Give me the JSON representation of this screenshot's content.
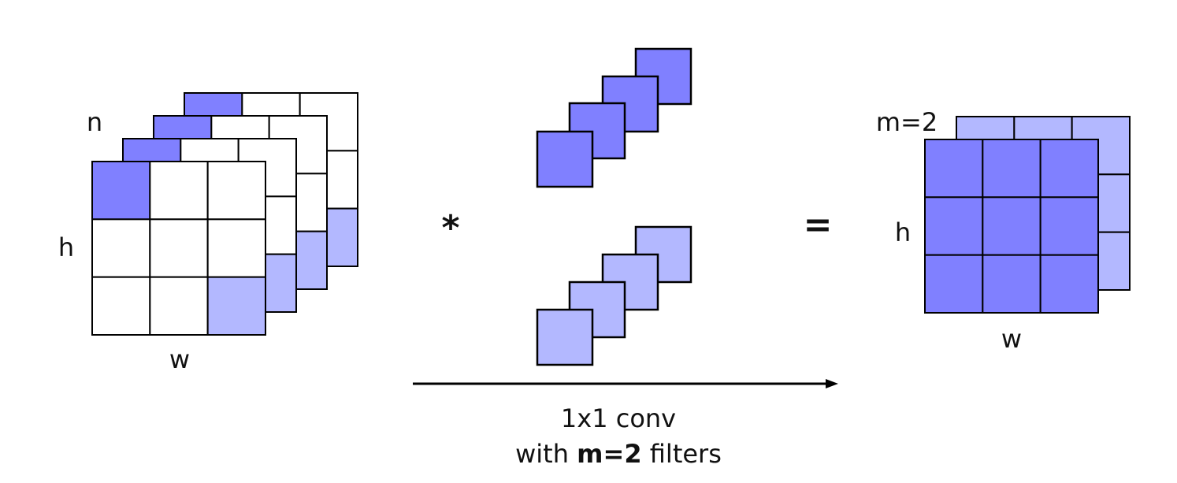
{
  "input": {
    "n_label": "n",
    "h_label": "h",
    "w_label": "w"
  },
  "operator": "*",
  "equals": "=",
  "output": {
    "m_label": "m=2",
    "h_label": "h",
    "w_label": "w"
  },
  "caption": {
    "line1": "1x1 conv",
    "line2": {
      "prefix": "with",
      "emphasis": "m=2",
      "suffix": "filters"
    }
  }
}
